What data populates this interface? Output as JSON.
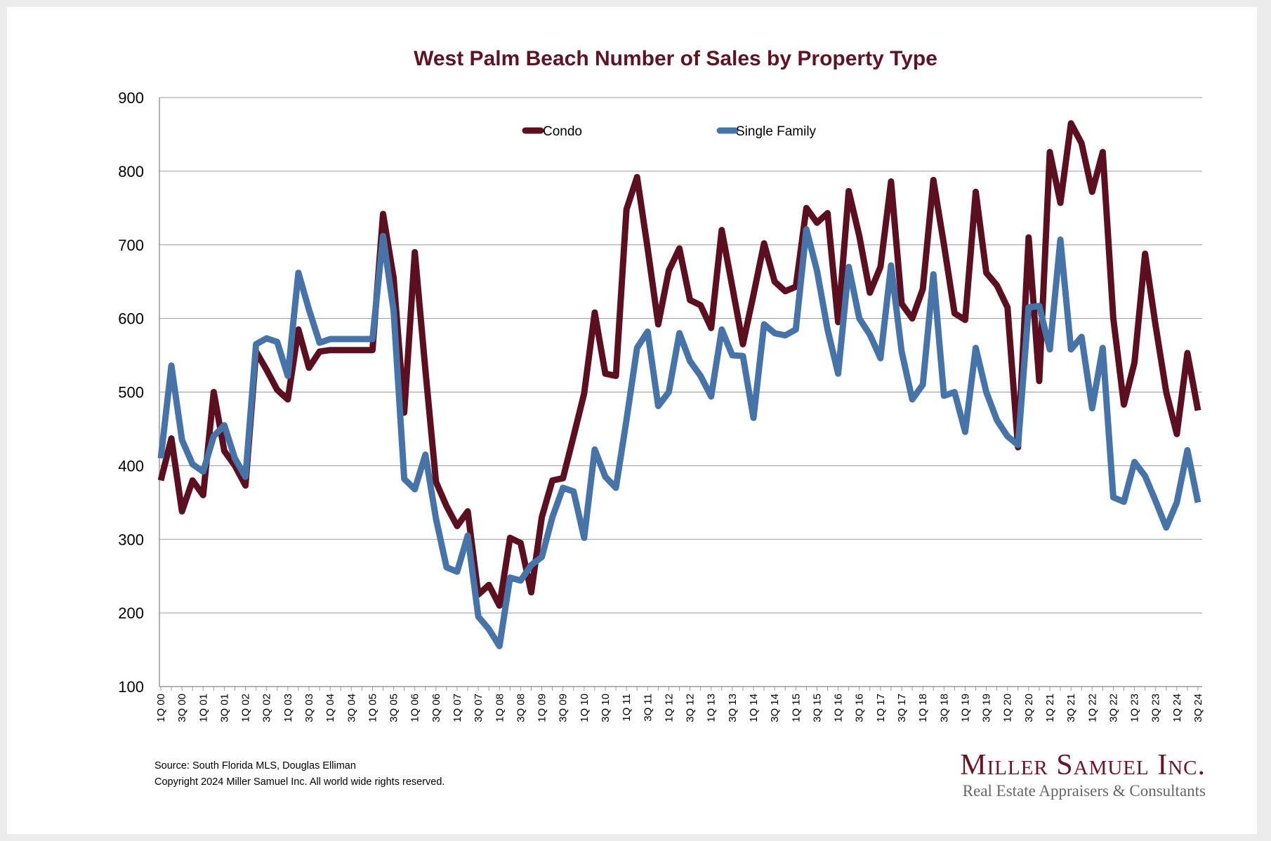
{
  "chart_data": {
    "type": "line",
    "title": "West Palm Beach Number of Sales by Property Type",
    "xlabel": "",
    "ylabel": "",
    "ylim": [
      100,
      900
    ],
    "y_ticks": [
      100,
      200,
      300,
      400,
      500,
      600,
      700,
      800,
      900
    ],
    "grid": "horizontal",
    "legend_position": "top-center",
    "x_tick_labels": [
      "1Q 00",
      "3Q 00",
      "1Q 01",
      "3Q 01",
      "1Q 02",
      "3Q 02",
      "1Q 03",
      "3Q 03",
      "1Q 04",
      "3Q 04",
      "1Q 05",
      "3Q 05",
      "1Q 06",
      "3Q 06",
      "1Q 07",
      "3Q 07",
      "1Q 08",
      "3Q 08",
      "1Q 09",
      "3Q 09",
      "1Q 10",
      "3Q 10",
      "1Q 11",
      "3Q 11",
      "1Q 12",
      "3Q 12",
      "1Q 13",
      "3Q 13",
      "1Q 14",
      "3Q 14",
      "1Q 15",
      "3Q 15",
      "1Q 16",
      "3Q 16",
      "1Q 17",
      "3Q 17",
      "1Q 18",
      "3Q 18",
      "1Q 19",
      "3Q 19",
      "1Q 20",
      "3Q 20",
      "1Q 21",
      "3Q 21",
      "1Q 22",
      "3Q 22",
      "1Q 23",
      "3Q 23",
      "1Q 24",
      "3Q 24"
    ],
    "series": [
      {
        "name": "Condo",
        "color": "#5c0f1f",
        "values": [
          380,
          437,
          338,
          380,
          360,
          500,
          420,
          400,
          373,
          555,
          530,
          503,
          490,
          585,
          533,
          555,
          557,
          557,
          557,
          557,
          557,
          742,
          655,
          472,
          690,
          530,
          378,
          345,
          318,
          338,
          225,
          238,
          210,
          302,
          295,
          228,
          330,
          380,
          383,
          440,
          498,
          608,
          525,
          522,
          748,
          792,
          695,
          592,
          665,
          695,
          625,
          618,
          587,
          720,
          643,
          565,
          632,
          702,
          650,
          637,
          643,
          750,
          730,
          743,
          595,
          773,
          712,
          635,
          670,
          786,
          620,
          600,
          640,
          788,
          700,
          607,
          598,
          772,
          662,
          645,
          615,
          425,
          710,
          515,
          826,
          757,
          865,
          838,
          772,
          826,
          600,
          483,
          540,
          688,
          590,
          500,
          443,
          553,
          475
        ]
      },
      {
        "name": "Single Family",
        "color": "#4674a9",
        "values": [
          410,
          536,
          435,
          402,
          392,
          440,
          455,
          410,
          385,
          565,
          573,
          568,
          522,
          662,
          612,
          567,
          572,
          572,
          572,
          572,
          572,
          712,
          610,
          382,
          368,
          415,
          328,
          262,
          256,
          305,
          195,
          178,
          155,
          248,
          244,
          265,
          276,
          330,
          370,
          365,
          302,
          422,
          385,
          370,
          462,
          560,
          582,
          481,
          500,
          580,
          542,
          522,
          494,
          585,
          550,
          549,
          465,
          592,
          580,
          577,
          585,
          721,
          665,
          585,
          525,
          670,
          600,
          578,
          546,
          672,
          555,
          490,
          510,
          660,
          495,
          500,
          446,
          560,
          500,
          462,
          440,
          428,
          615,
          617,
          558,
          707,
          558,
          575,
          478,
          560,
          357,
          351,
          405,
          386,
          352,
          316,
          350,
          421,
          350
        ]
      }
    ]
  },
  "footer": {
    "source": "Source: South Florida MLS, Douglas Elliman",
    "copyright": "Copyright 2024 Miller Samuel Inc.  All world wide rights reserved."
  },
  "logo": {
    "name": "Miller Samuel Inc.",
    "tagline": "Real Estate Appraisers & Consultants"
  }
}
